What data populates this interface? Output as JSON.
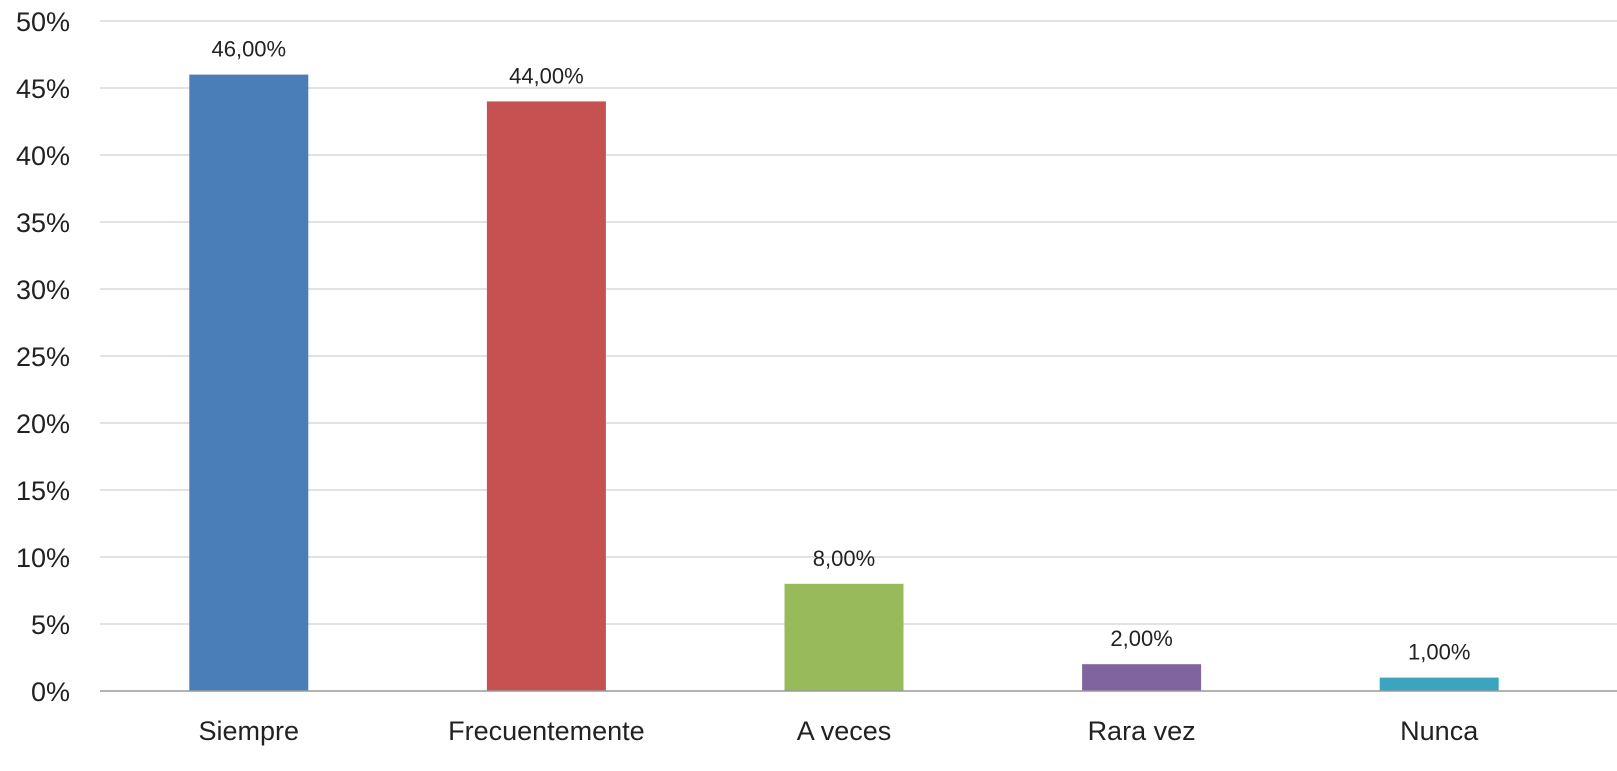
{
  "chart_data": {
    "type": "bar",
    "categories": [
      "Siempre",
      "Frecuentemente",
      "A veces",
      "Rara vez",
      "Nunca"
    ],
    "values": [
      46,
      44,
      8,
      2,
      1
    ],
    "value_labels": [
      "46,00%",
      "44,00%",
      "8,00%",
      "2,00%",
      "1,00%"
    ],
    "colors": [
      "#4a7eb8",
      "#c55250",
      "#98ba5b",
      "#8064a0",
      "#3ba5bf"
    ],
    "y_ticks": [
      0,
      5,
      10,
      15,
      20,
      25,
      30,
      35,
      40,
      45,
      50
    ],
    "y_tick_labels": [
      "0%",
      "5%",
      "10%",
      "15%",
      "20%",
      "25%",
      "30%",
      "35%",
      "40%",
      "45%",
      "50%"
    ],
    "ylim": [
      0,
      50
    ],
    "grid": true,
    "legend": "none",
    "title": "",
    "xlabel": "",
    "ylabel": ""
  }
}
